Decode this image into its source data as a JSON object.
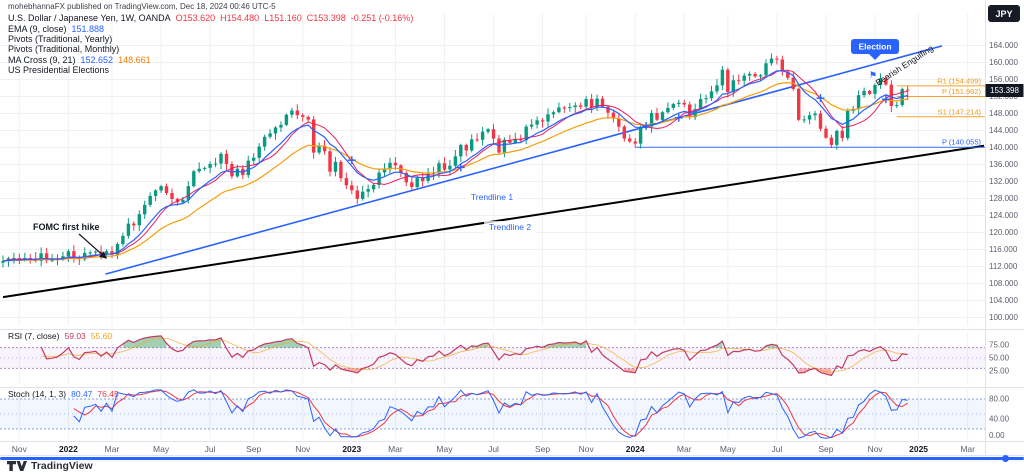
{
  "header": {
    "published_line": "mohebhannaFX published on TradingView.com, Dec 18, 2024 00:46 UTC-5"
  },
  "axis_button": {
    "label": "JPY"
  },
  "legend": {
    "symbol_line": {
      "title": "U.S. Dollar / Japanese Yen, 1W, OANDA",
      "open": "O153.620",
      "high": "H154.480",
      "low": "L151.160",
      "close": "C153.398",
      "change": "-0.251 (-0.16%)"
    },
    "ema": {
      "label": "EMA (9, close)",
      "value": "151.888"
    },
    "pivots_yearly": {
      "label": "Pivots (Traditional, Yearly)"
    },
    "pivots_monthly": {
      "label": "Pivots (Traditional, Monthly)"
    },
    "ma_cross": {
      "label": "MA Cross (9, 21)",
      "value1": "152.652",
      "value2": "148.661"
    },
    "elections": {
      "label": "US Presidential Elections"
    }
  },
  "rsi_legend": {
    "label": "RSI (7, close)",
    "value1": "59.03",
    "value2": "55.60"
  },
  "stoch_legend": {
    "label": "Stoch (14, 1, 3)",
    "value1": "80.47",
    "value2": "76.45"
  },
  "axis": {
    "last_price": "153.398",
    "price_ticks": [
      "164.000",
      "160.000",
      "156.000",
      "152.000",
      "148.000",
      "144.000",
      "140.000",
      "136.000",
      "132.000",
      "128.000",
      "124.000",
      "120.000",
      "116.000",
      "112.000",
      "108.000",
      "104.000",
      "100.000"
    ],
    "rsi_ticks": [
      "75.00",
      "50.00",
      "25.00"
    ],
    "stoch_ticks": [
      "80.00",
      "40.00",
      "0.00"
    ],
    "time_labels": [
      {
        "text": "Nov",
        "week": 3,
        "year": false
      },
      {
        "text": "2022",
        "week": 12,
        "year": true
      },
      {
        "text": "Mar",
        "week": 20,
        "year": false
      },
      {
        "text": "May",
        "week": 29,
        "year": false
      },
      {
        "text": "Jul",
        "week": 38,
        "year": false
      },
      {
        "text": "Sep",
        "week": 46,
        "year": false
      },
      {
        "text": "Nov",
        "week": 55,
        "year": false
      },
      {
        "text": "2023",
        "week": 64,
        "year": true
      },
      {
        "text": "Mar",
        "week": 72,
        "year": false
      },
      {
        "text": "May",
        "week": 81,
        "year": false
      },
      {
        "text": "Jul",
        "week": 90,
        "year": false
      },
      {
        "text": "Sep",
        "week": 99,
        "year": false
      },
      {
        "text": "Nov",
        "week": 107,
        "year": false
      },
      {
        "text": "2024",
        "week": 116,
        "year": true
      },
      {
        "text": "Mar",
        "week": 125,
        "year": false
      },
      {
        "text": "May",
        "week": 133,
        "year": false
      },
      {
        "text": "Jul",
        "week": 142,
        "year": false
      },
      {
        "text": "Sep",
        "week": 151,
        "year": false
      },
      {
        "text": "Nov",
        "week": 160,
        "year": false
      },
      {
        "text": "2025",
        "week": 168,
        "year": true
      },
      {
        "text": "Mar",
        "week": 177,
        "year": false
      }
    ]
  },
  "branding": {
    "logo_text": "TradingView"
  },
  "theme": {
    "up": "#089981",
    "down": "#f23645",
    "grid": "#eef1f6",
    "axis_text": "#5d606d",
    "year_text": "#131722",
    "ema9": "#2962ff",
    "sma9": "#e91e63",
    "ema21": "#f59e0b",
    "rsi_line": "#c43a5f",
    "rsi_ma": "#f5a623",
    "rsi_band": "#9b6fc9",
    "stoch_k": "#2962ff",
    "stoch_d": "#f23645",
    "stoch_band": "#6f86d8",
    "badge_bg": "#131722",
    "accent_blue": "#2962ff",
    "pivot_orange": "#f09819"
  },
  "chart_data": {
    "type": "candlestick",
    "title": "U.S. Dollar / Japanese Yen, 1W, OANDA",
    "timeframe": "1W",
    "price_axis_range": [
      98,
      171.4
    ],
    "weekly_closes": [
      113.3,
      113.9,
      114.0,
      113.5,
      114.0,
      113.9,
      113.3,
      115.1,
      113.4,
      113.5,
      113.7,
      114.4,
      115.6,
      114.2,
      113.7,
      115.2,
      115.3,
      115.5,
      114.8,
      115.6,
      114.8,
      117.3,
      119.2,
      122.1,
      121.7,
      124.3,
      126.5,
      128.6,
      129.9,
      130.9,
      129.3,
      127.9,
      127.1,
      127.7,
      130.9,
      134.4,
      135.0,
      135.2,
      136.1,
      136.2,
      138.5,
      136.1,
      133.2,
      135.0,
      133.5,
      136.9,
      137.6,
      140.2,
      142.5,
      143.3,
      144.7,
      145.3,
      147.7,
      148.7,
      147.6,
      147.2,
      146.6,
      138.8,
      140.4,
      139.1,
      134.3,
      136.6,
      132.8,
      131.1,
      129.9,
      127.9,
      129.6,
      130.2,
      131.2,
      134.1,
      134.9,
      136.4,
      135.8,
      134.0,
      131.8,
      130.7,
      132.8,
      132.1,
      133.8,
      134.1,
      136.3,
      134.8,
      135.7,
      137.9,
      140.6,
      139.3,
      141.9,
      141.8,
      143.7,
      144.3,
      142.1,
      138.8,
      141.8,
      141.1,
      142.0,
      141.7,
      144.9,
      145.4,
      146.4,
      146.1,
      147.8,
      148.3,
      149.4,
      149.3,
      149.5,
      149.9,
      149.6,
      151.4,
      149.4,
      151.5,
      149.6,
      148.2,
      146.8,
      144.9,
      142.1,
      141.4,
      140.9,
      144.6,
      144.9,
      148.1,
      146.5,
      148.3,
      149.3,
      150.2,
      150.5,
      150.1,
      147.1,
      149.0,
      151.4,
      151.6,
      153.2,
      154.6,
      158.3,
      153.0,
      155.8,
      155.7,
      156.9,
      157.3,
      156.7,
      157.0,
      159.8,
      160.9,
      160.7,
      157.9,
      156.4,
      153.8,
      146.5,
      146.6,
      147.6,
      148.0,
      144.4,
      142.3,
      140.6,
      143.9,
      142.2,
      148.6,
      149.1,
      152.3,
      153.3,
      152.6,
      154.7,
      156.3,
      154.8,
      149.8,
      150.0,
      153.7,
      153.398
    ],
    "last_candle": {
      "o": 153.62,
      "h": 154.48,
      "l": 151.16,
      "c": 153.398
    },
    "indicators": {
      "ema9_last": 151.888,
      "ma_cross_last": [
        152.652,
        148.661
      ],
      "rsi7_last": [
        59.03,
        55.6
      ],
      "stoch_last": [
        80.47,
        76.45
      ]
    },
    "pivots": [
      {
        "label": "R1 (154.499)",
        "price": 154.499,
        "color": "#f09819",
        "from_week": 164
      },
      {
        "label": "P (151.982)",
        "price": 151.982,
        "color": "#f09819",
        "from_week": 164
      },
      {
        "label": "S1 (147.214)",
        "price": 147.214,
        "color": "#f09819",
        "from_week": 164
      },
      {
        "label": "P (140.055)",
        "price": 140.055,
        "color": "#2962ff",
        "from_week": 116
      }
    ],
    "trendlines": [
      {
        "name": "Trendline 1",
        "color": "#2962ff",
        "w0": 18.8,
        "p0": 110.2,
        "w1": 172.3,
        "p1": 163.9,
        "width": 1.6
      },
      {
        "name": "Trendline 2",
        "color": "#000000",
        "w0": 0,
        "p0": 104.8,
        "w1": 180,
        "p1": 140.4,
        "width": 2
      }
    ],
    "annotations": {
      "fomc": "FOMC first hike",
      "election": "Election",
      "bearish": "Bearish Engulfing",
      "trendline1": "Trendline 1",
      "trendline2": "Trendline 2"
    }
  }
}
